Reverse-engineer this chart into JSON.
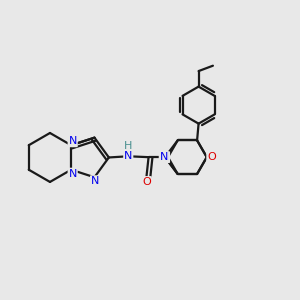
{
  "bg_color": "#e8e8e8",
  "bond_color": "#1a1a1a",
  "N_color": "#0000ee",
  "O_color": "#dd0000",
  "H_color": "#4a9090",
  "lw": 1.6,
  "fig_size": [
    3.0,
    3.0
  ],
  "dpi": 100,
  "xlim": [
    0.0,
    1.0
  ],
  "ylim": [
    0.2,
    0.9
  ]
}
